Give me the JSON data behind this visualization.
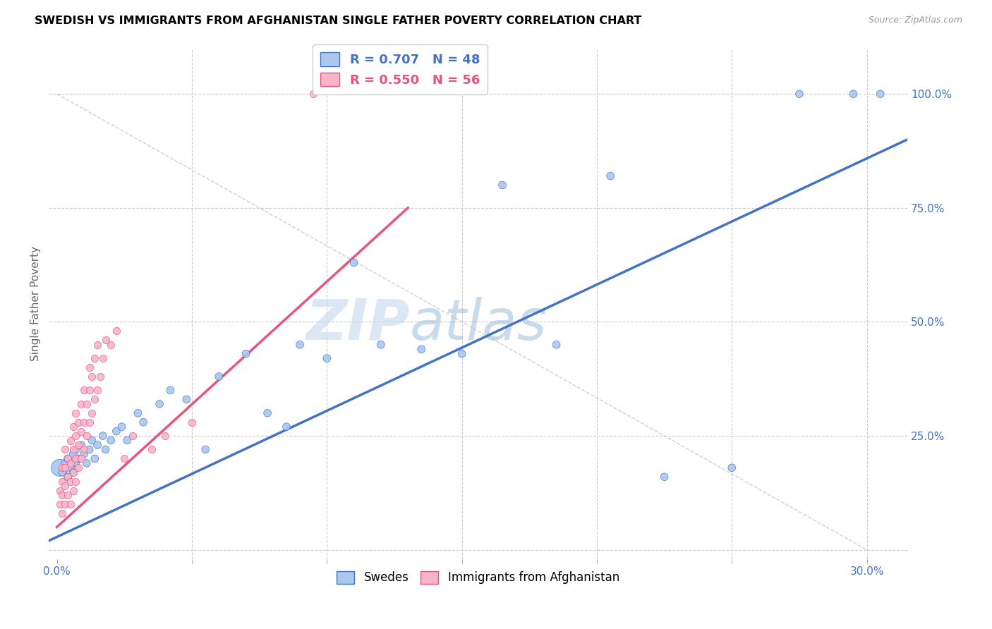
{
  "title": "SWEDISH VS IMMIGRANTS FROM AFGHANISTAN SINGLE FATHER POVERTY CORRELATION CHART",
  "source": "Source: ZipAtlas.com",
  "ylabel": "Single Father Poverty",
  "legend_label_blue": "Swedes",
  "legend_label_pink": "Immigrants from Afghanistan",
  "blue_color": "#A8C8F0",
  "pink_color": "#F8B4CC",
  "blue_line_color": "#4472C4",
  "pink_line_color": "#E8547A",
  "watermark_zip": "ZIP",
  "watermark_atlas": "atlas",
  "grid_color": "#CCCCCC",
  "xlim": [
    -0.003,
    0.315
  ],
  "ylim": [
    -0.02,
    1.1
  ],
  "swedes_x": [
    0.001,
    0.002,
    0.003,
    0.004,
    0.004,
    0.005,
    0.006,
    0.006,
    0.007,
    0.007,
    0.008,
    0.009,
    0.01,
    0.011,
    0.012,
    0.013,
    0.014,
    0.015,
    0.017,
    0.018,
    0.02,
    0.022,
    0.024,
    0.026,
    0.03,
    0.032,
    0.038,
    0.042,
    0.048,
    0.055,
    0.06,
    0.07,
    0.078,
    0.085,
    0.09,
    0.1,
    0.11,
    0.12,
    0.135,
    0.15,
    0.165,
    0.185,
    0.205,
    0.225,
    0.25,
    0.275,
    0.295,
    0.305
  ],
  "swedes_y": [
    0.18,
    0.17,
    0.19,
    0.16,
    0.2,
    0.18,
    0.17,
    0.21,
    0.19,
    0.22,
    0.2,
    0.23,
    0.21,
    0.19,
    0.22,
    0.24,
    0.2,
    0.23,
    0.25,
    0.22,
    0.24,
    0.26,
    0.27,
    0.24,
    0.3,
    0.28,
    0.32,
    0.35,
    0.33,
    0.22,
    0.38,
    0.43,
    0.3,
    0.27,
    0.45,
    0.42,
    0.63,
    0.45,
    0.44,
    0.43,
    0.8,
    0.45,
    0.82,
    0.16,
    0.18,
    1.0,
    1.0,
    1.0
  ],
  "swedes_sizes": [
    300,
    60,
    60,
    60,
    60,
    60,
    60,
    60,
    60,
    60,
    60,
    60,
    60,
    60,
    60,
    60,
    60,
    60,
    60,
    60,
    60,
    60,
    60,
    60,
    60,
    60,
    60,
    60,
    60,
    60,
    60,
    60,
    60,
    60,
    60,
    60,
    60,
    60,
    60,
    60,
    60,
    60,
    60,
    60,
    60,
    60,
    60,
    60
  ],
  "afghan_x": [
    0.001,
    0.001,
    0.002,
    0.002,
    0.002,
    0.002,
    0.003,
    0.003,
    0.003,
    0.003,
    0.004,
    0.004,
    0.004,
    0.005,
    0.005,
    0.005,
    0.005,
    0.006,
    0.006,
    0.006,
    0.006,
    0.007,
    0.007,
    0.007,
    0.007,
    0.008,
    0.008,
    0.008,
    0.009,
    0.009,
    0.009,
    0.01,
    0.01,
    0.01,
    0.011,
    0.011,
    0.012,
    0.012,
    0.012,
    0.013,
    0.013,
    0.014,
    0.014,
    0.015,
    0.015,
    0.016,
    0.017,
    0.018,
    0.02,
    0.022,
    0.025,
    0.028,
    0.035,
    0.04,
    0.05,
    0.095
  ],
  "afghan_y": [
    0.1,
    0.13,
    0.08,
    0.12,
    0.15,
    0.18,
    0.1,
    0.14,
    0.18,
    0.22,
    0.12,
    0.16,
    0.2,
    0.1,
    0.15,
    0.19,
    0.24,
    0.13,
    0.17,
    0.22,
    0.27,
    0.15,
    0.2,
    0.25,
    0.3,
    0.18,
    0.23,
    0.28,
    0.2,
    0.26,
    0.32,
    0.22,
    0.28,
    0.35,
    0.25,
    0.32,
    0.28,
    0.35,
    0.4,
    0.3,
    0.38,
    0.33,
    0.42,
    0.35,
    0.45,
    0.38,
    0.42,
    0.46,
    0.45,
    0.48,
    0.2,
    0.25,
    0.22,
    0.25,
    0.28,
    1.0
  ],
  "blue_line_x": [
    -0.003,
    0.315
  ],
  "blue_line_y": [
    0.02,
    0.9
  ],
  "pink_line_x": [
    0.0,
    0.13
  ],
  "pink_line_y": [
    0.05,
    0.75
  ],
  "diag_line_x": [
    0.0,
    0.3
  ],
  "diag_line_y": [
    0.95,
    0.1
  ]
}
